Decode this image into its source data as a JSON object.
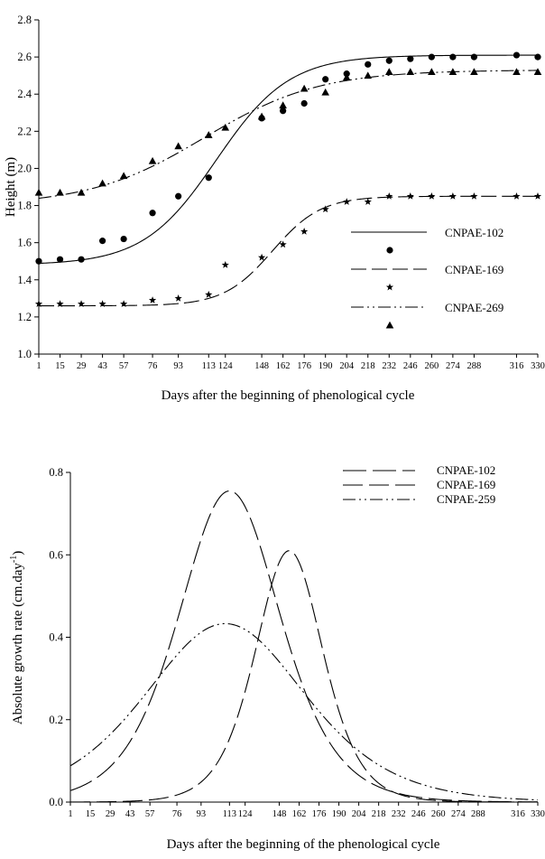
{
  "chart_data": [
    {
      "type": "line",
      "xlabel": "Days after the beginning of phenological cycle",
      "ylabel": "Height (m)",
      "ylim": [
        1.0,
        2.8
      ],
      "yticks": [
        "1.0",
        "1.2",
        "1.4",
        "1.6",
        "1.8",
        "2.0",
        "2.2",
        "2.4",
        "2.6",
        "2.8"
      ],
      "xlim": [
        1,
        330
      ],
      "xticks": [
        1,
        15,
        29,
        43,
        57,
        76,
        93,
        113,
        124,
        148,
        162,
        176,
        190,
        204,
        218,
        232,
        246,
        260,
        274,
        288,
        316,
        330
      ],
      "legend_position": "center-right",
      "series": [
        {
          "name": "CNPAE-102",
          "line": "solid",
          "marker": "circle",
          "fit": {
            "base": 1.48,
            "amplitude": 1.13,
            "midpoint": 118,
            "scale": 24
          },
          "points": [
            {
              "x": 1,
              "y": 1.5
            },
            {
              "x": 15,
              "y": 1.51
            },
            {
              "x": 29,
              "y": 1.51
            },
            {
              "x": 43,
              "y": 1.61
            },
            {
              "x": 57,
              "y": 1.62
            },
            {
              "x": 76,
              "y": 1.76
            },
            {
              "x": 93,
              "y": 1.85
            },
            {
              "x": 113,
              "y": 1.95
            },
            {
              "x": 148,
              "y": 2.27
            },
            {
              "x": 162,
              "y": 2.31
            },
            {
              "x": 176,
              "y": 2.35
            },
            {
              "x": 190,
              "y": 2.48
            },
            {
              "x": 204,
              "y": 2.51
            },
            {
              "x": 218,
              "y": 2.56
            },
            {
              "x": 232,
              "y": 2.58
            },
            {
              "x": 246,
              "y": 2.59
            },
            {
              "x": 260,
              "y": 2.6
            },
            {
              "x": 274,
              "y": 2.6
            },
            {
              "x": 288,
              "y": 2.6
            },
            {
              "x": 316,
              "y": 2.61
            },
            {
              "x": 330,
              "y": 2.6
            }
          ]
        },
        {
          "name": "CNPAE-169",
          "line": "dashed",
          "marker": "star",
          "fit": {
            "base": 1.26,
            "amplitude": 0.59,
            "midpoint": 155,
            "scale": 16
          },
          "points": [
            {
              "x": 1,
              "y": 1.27
            },
            {
              "x": 15,
              "y": 1.27
            },
            {
              "x": 29,
              "y": 1.27
            },
            {
              "x": 43,
              "y": 1.27
            },
            {
              "x": 57,
              "y": 1.27
            },
            {
              "x": 76,
              "y": 1.29
            },
            {
              "x": 93,
              "y": 1.3
            },
            {
              "x": 113,
              "y": 1.32
            },
            {
              "x": 124,
              "y": 1.48
            },
            {
              "x": 148,
              "y": 1.52
            },
            {
              "x": 162,
              "y": 1.59
            },
            {
              "x": 176,
              "y": 1.66
            },
            {
              "x": 190,
              "y": 1.78
            },
            {
              "x": 204,
              "y": 1.82
            },
            {
              "x": 218,
              "y": 1.82
            },
            {
              "x": 232,
              "y": 1.85
            },
            {
              "x": 246,
              "y": 1.85
            },
            {
              "x": 260,
              "y": 1.85
            },
            {
              "x": 274,
              "y": 1.85
            },
            {
              "x": 288,
              "y": 1.85
            },
            {
              "x": 316,
              "y": 1.85
            },
            {
              "x": 330,
              "y": 1.85
            }
          ]
        },
        {
          "name": "CNPAE-269",
          "line": "dash-dot-dot",
          "marker": "triangle",
          "fit": {
            "base": 1.8,
            "amplitude": 0.73,
            "midpoint": 110,
            "scale": 38
          },
          "points": [
            {
              "x": 1,
              "y": 1.87
            },
            {
              "x": 15,
              "y": 1.87
            },
            {
              "x": 29,
              "y": 1.87
            },
            {
              "x": 43,
              "y": 1.92
            },
            {
              "x": 57,
              "y": 1.96
            },
            {
              "x": 76,
              "y": 2.04
            },
            {
              "x": 93,
              "y": 2.12
            },
            {
              "x": 113,
              "y": 2.18
            },
            {
              "x": 124,
              "y": 2.22
            },
            {
              "x": 148,
              "y": 2.28
            },
            {
              "x": 162,
              "y": 2.34
            },
            {
              "x": 176,
              "y": 2.43
            },
            {
              "x": 190,
              "y": 2.41
            },
            {
              "x": 204,
              "y": 2.49
            },
            {
              "x": 218,
              "y": 2.5
            },
            {
              "x": 232,
              "y": 2.52
            },
            {
              "x": 246,
              "y": 2.52
            },
            {
              "x": 260,
              "y": 2.52
            },
            {
              "x": 274,
              "y": 2.52
            },
            {
              "x": 288,
              "y": 2.52
            },
            {
              "x": 316,
              "y": 2.52
            },
            {
              "x": 330,
              "y": 2.52
            }
          ]
        }
      ]
    },
    {
      "type": "line",
      "xlabel": "Days after the beginning of the phenological cycle",
      "ylabel": "Absolute growth rate  (cm.day",
      "ylabel_superscript": "-1",
      "ylabel_close": ")",
      "ylim": [
        0.0,
        0.8
      ],
      "yticks": [
        "0.0",
        "0.2",
        "0.4",
        "0.6",
        "0.8"
      ],
      "xlim": [
        1,
        330
      ],
      "xticks": [
        1,
        15,
        29,
        43,
        57,
        76,
        93,
        113,
        124,
        148,
        162,
        176,
        190,
        204,
        218,
        232,
        246,
        260,
        274,
        288,
        316,
        330
      ],
      "legend_position": "top-right",
      "series": [
        {
          "name": "CNPAE-102",
          "line": "long-dash",
          "peak_x": 113,
          "peak_y": 0.755,
          "spread": 24
        },
        {
          "name": "CNPAE-169",
          "line": "dash",
          "peak_x": 155,
          "peak_y": 0.61,
          "spread": 16
        },
        {
          "name": "CNPAE-259",
          "line": "dash-dot-dot",
          "peak_x": 110,
          "peak_y": 0.433,
          "spread": 38
        }
      ]
    }
  ]
}
